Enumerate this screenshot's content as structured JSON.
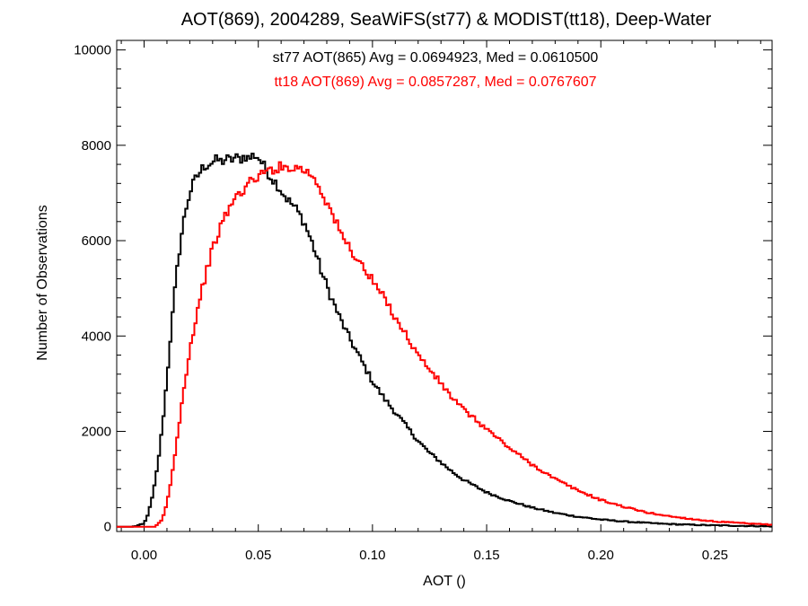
{
  "chart_data": {
    "type": "histogram",
    "title": "AOT(869), 2004289, SeaWiFS(st77) & MODIST(tt18), Deep-Water",
    "xlabel": "AOT ()",
    "ylabel": "Number of Observations",
    "xlim": [
      -0.012,
      0.275
    ],
    "ylim": [
      -100,
      10200
    ],
    "x_ticks": [
      0.0,
      0.05,
      0.1,
      0.15,
      0.2,
      0.25
    ],
    "x_tick_labels": [
      "0.00",
      "0.05",
      "0.10",
      "0.15",
      "0.20",
      "0.25"
    ],
    "y_ticks": [
      0,
      2000,
      4000,
      6000,
      8000,
      10000
    ],
    "y_tick_labels": [
      "0",
      "2000",
      "4000",
      "6000",
      "8000",
      "10000"
    ],
    "bin_width": 0.001,
    "grid": false,
    "series": [
      {
        "name": "st77",
        "color": "#000000",
        "annotation": "st77 AOT(865) Avg = 0.0694923, Med = 0.0610500",
        "x": [
          -0.005,
          0.0,
          0.002,
          0.004,
          0.006,
          0.008,
          0.01,
          0.012,
          0.014,
          0.016,
          0.018,
          0.02,
          0.022,
          0.024,
          0.026,
          0.028,
          0.03,
          0.032,
          0.034,
          0.036,
          0.038,
          0.04,
          0.042,
          0.044,
          0.046,
          0.048,
          0.05,
          0.052,
          0.054,
          0.056,
          0.058,
          0.06,
          0.063,
          0.066,
          0.07,
          0.074,
          0.078,
          0.082,
          0.086,
          0.09,
          0.095,
          0.1,
          0.105,
          0.11,
          0.115,
          0.12,
          0.125,
          0.13,
          0.135,
          0.14,
          0.15,
          0.16,
          0.17,
          0.18,
          0.19,
          0.2,
          0.21,
          0.22,
          0.23,
          0.24,
          0.25,
          0.26,
          0.27,
          0.275
        ],
        "y": [
          0,
          60,
          300,
          700,
          1300,
          2100,
          3100,
          4200,
          5200,
          6000,
          6600,
          7000,
          7250,
          7400,
          7550,
          7600,
          7650,
          7700,
          7650,
          7720,
          7680,
          7750,
          7700,
          7780,
          7720,
          7800,
          7750,
          7600,
          7450,
          7300,
          7200,
          7050,
          6850,
          6700,
          6400,
          5900,
          5300,
          4800,
          4350,
          3950,
          3500,
          3050,
          2700,
          2400,
          2100,
          1800,
          1550,
          1350,
          1150,
          980,
          720,
          540,
          400,
          290,
          210,
          150,
          110,
          80,
          55,
          40,
          28,
          20,
          12,
          10
        ]
      },
      {
        "name": "tt18",
        "color": "#ff0000",
        "annotation": "tt18 AOT(869) Avg = 0.0857287, Med = 0.0767607",
        "x": [
          0.005,
          0.008,
          0.01,
          0.012,
          0.014,
          0.016,
          0.018,
          0.02,
          0.022,
          0.024,
          0.026,
          0.028,
          0.03,
          0.032,
          0.034,
          0.036,
          0.038,
          0.04,
          0.042,
          0.044,
          0.046,
          0.048,
          0.05,
          0.052,
          0.054,
          0.056,
          0.058,
          0.06,
          0.062,
          0.064,
          0.066,
          0.068,
          0.07,
          0.072,
          0.074,
          0.076,
          0.078,
          0.08,
          0.083,
          0.086,
          0.09,
          0.095,
          0.1,
          0.105,
          0.11,
          0.115,
          0.12,
          0.125,
          0.13,
          0.135,
          0.14,
          0.145,
          0.15,
          0.16,
          0.17,
          0.18,
          0.19,
          0.2,
          0.21,
          0.22,
          0.23,
          0.24,
          0.25,
          0.26,
          0.27,
          0.275
        ],
        "y": [
          0,
          150,
          500,
          1000,
          1700,
          2400,
          3100,
          3700,
          4200,
          4700,
          5100,
          5500,
          5800,
          6100,
          6350,
          6550,
          6750,
          6900,
          7000,
          7100,
          7200,
          7300,
          7350,
          7400,
          7450,
          7500,
          7520,
          7550,
          7520,
          7580,
          7500,
          7550,
          7480,
          7420,
          7350,
          7200,
          7000,
          6800,
          6500,
          6150,
          5850,
          5500,
          5150,
          4800,
          4400,
          4000,
          3600,
          3300,
          3000,
          2700,
          2450,
          2250,
          2050,
          1650,
          1300,
          1000,
          760,
          560,
          420,
          300,
          220,
          160,
          110,
          80,
          50,
          40
        ]
      }
    ]
  }
}
